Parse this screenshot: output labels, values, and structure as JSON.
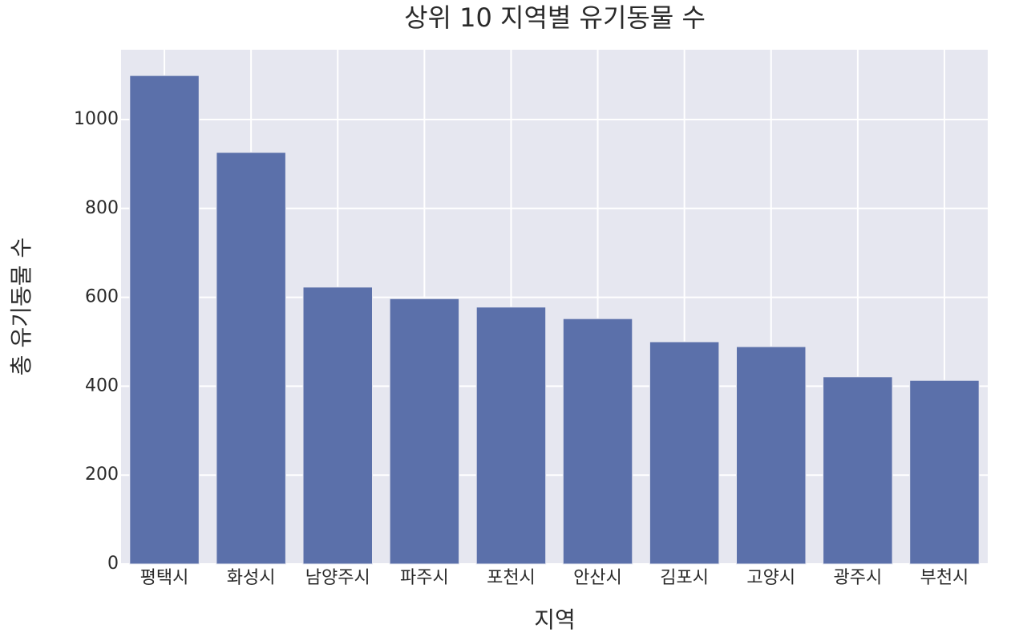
{
  "chart_data": {
    "type": "bar",
    "title": "상위 10 지역별 유기동물 수",
    "x_label": "지역",
    "y_label": "총 유기동물 수",
    "categories": [
      "평택시",
      "화성시",
      "남양주시",
      "파주시",
      "포천시",
      "안산시",
      "김포시",
      "고양시",
      "광주시",
      "부천시"
    ],
    "values": [
      1099,
      926,
      623,
      597,
      578,
      552,
      500,
      489,
      421,
      413
    ],
    "color": "#5b70aa",
    "ylim": [
      0,
      1157
    ],
    "yticks": [
      0,
      200,
      400,
      600,
      800,
      1000
    ],
    "grid": true
  }
}
